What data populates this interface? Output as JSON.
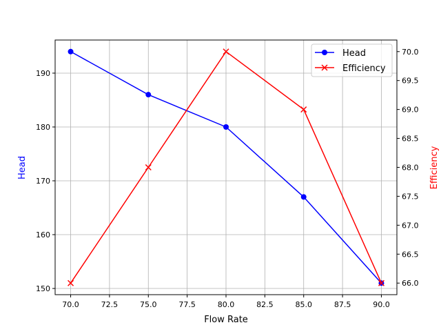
{
  "chart_data": {
    "type": "line",
    "title": "",
    "xlabel": "Flow Rate",
    "ylabel": "Head",
    "y2label": "Efficiency",
    "x": [
      70,
      75,
      80,
      85,
      90
    ],
    "xlim": [
      69,
      91
    ],
    "ylim": [
      148.85,
      196.15
    ],
    "y2lim": [
      65.8,
      70.2
    ],
    "xticks": [
      "70.0",
      "72.5",
      "75.0",
      "77.5",
      "80.0",
      "82.5",
      "85.0",
      "87.5",
      "90.0"
    ],
    "yticks": [
      "150",
      "160",
      "170",
      "180",
      "190"
    ],
    "y2ticks": [
      "66.0",
      "66.5",
      "67.0",
      "67.5",
      "68.0",
      "68.5",
      "69.0",
      "69.5",
      "70.0"
    ],
    "grid": true,
    "legend_position": "upper right",
    "series": [
      {
        "name": "Head",
        "axis": "left",
        "color": "#0000ff",
        "marker": "circle",
        "values": [
          194,
          186,
          180,
          167,
          151
        ]
      },
      {
        "name": "Efficiency",
        "axis": "right",
        "color": "#ff0000",
        "marker": "x",
        "values": [
          66,
          68,
          70,
          69,
          66
        ]
      }
    ]
  },
  "colors": {
    "head": "#0000ff",
    "efficiency": "#ff0000",
    "grid": "#b0b0b0"
  }
}
